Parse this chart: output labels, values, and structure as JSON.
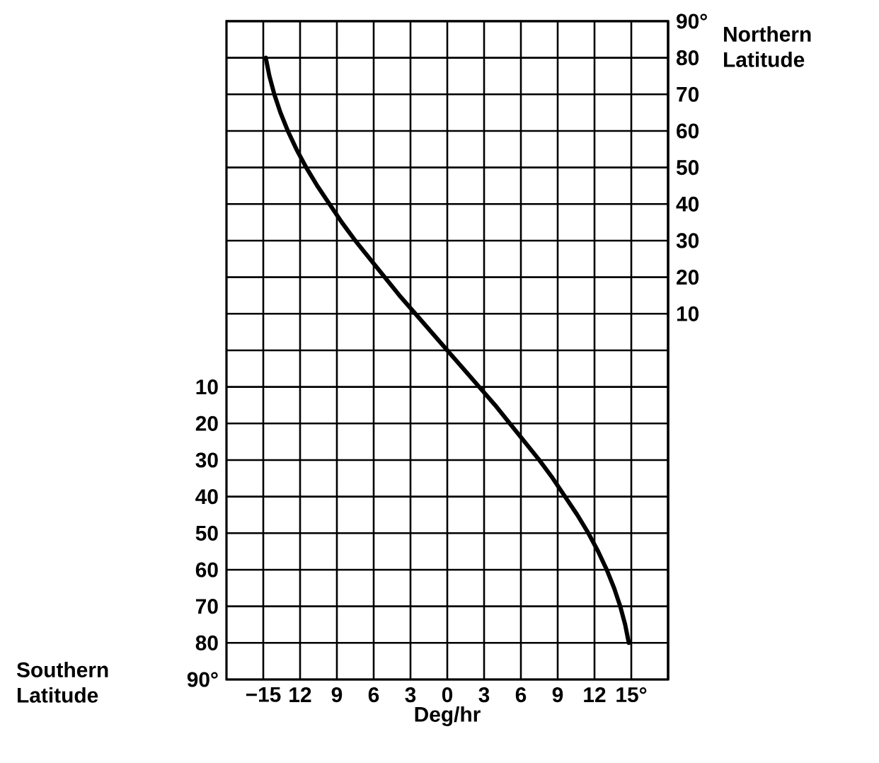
{
  "chart_data": {
    "type": "line",
    "xlabel": "Deg/hr",
    "xlim": [
      -18,
      18
    ],
    "xticks": [
      {
        "value": -15,
        "label": "−15"
      },
      {
        "value": -12,
        "label": "12"
      },
      {
        "value": -9,
        "label": "9"
      },
      {
        "value": -6,
        "label": "6"
      },
      {
        "value": -3,
        "label": "3"
      },
      0,
      3,
      6,
      9,
      12,
      {
        "value": 15,
        "label": "15°"
      }
    ],
    "ylim": [
      -90,
      90
    ],
    "yticks": [
      {
        "value": -90,
        "label": "90°"
      },
      {
        "value": -80,
        "label": "80"
      },
      {
        "value": -70,
        "label": "70"
      },
      {
        "value": -60,
        "label": "60"
      },
      {
        "value": -50,
        "label": "50"
      },
      {
        "value": -40,
        "label": "40"
      },
      {
        "value": -30,
        "label": "30"
      },
      {
        "value": -20,
        "label": "20"
      },
      {
        "value": -10,
        "label": "10"
      },
      {
        "value": 0,
        "label": null
      }
    ],
    "y2lim": [
      -90,
      90
    ],
    "y2ticks": [
      10,
      20,
      30,
      40,
      50,
      60,
      70,
      80,
      {
        "value": 90,
        "label": "90°"
      }
    ],
    "grid": true,
    "marker": "none",
    "line_style": "solid",
    "series": [
      {
        "color": "#000000",
        "x": [
          -14.8,
          -14.5,
          -14.1,
          -13.6,
          -13.0,
          -12.3,
          -11.5,
          -10.6,
          -9.6,
          -8.6,
          -7.5,
          -6.3,
          -5.1,
          -3.9,
          -2.6,
          -1.3,
          0,
          1.3,
          2.6,
          3.9,
          5.1,
          6.3,
          7.5,
          8.6,
          9.6,
          10.6,
          11.5,
          12.3,
          13.0,
          13.6,
          14.1,
          14.5,
          14.8
        ],
        "values": [
          80,
          75,
          70,
          65,
          60,
          55,
          50,
          45,
          40,
          35,
          30,
          25,
          20,
          15,
          10,
          5,
          0,
          -5,
          -10,
          -15,
          -20,
          -25,
          -30,
          -35,
          -40,
          -45,
          -50,
          -55,
          -60,
          -65,
          -70,
          -75,
          -80
        ]
      }
    ],
    "annotations": [
      "Northern Latitude",
      "Southern Latitude"
    ]
  }
}
